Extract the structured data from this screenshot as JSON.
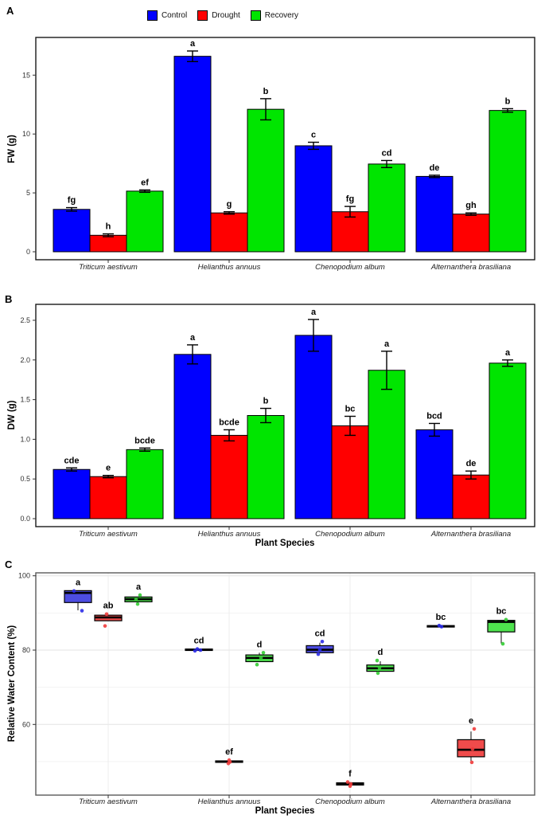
{
  "figure": {
    "panels": [
      {
        "label": "A"
      },
      {
        "label": "B"
      },
      {
        "label": "C"
      }
    ]
  },
  "legend": {
    "items": [
      {
        "label": "Control",
        "color": "#0000FF"
      },
      {
        "label": "Drought",
        "color": "#FF0000"
      },
      {
        "label": "Recovery",
        "color": "#00E500"
      }
    ]
  },
  "colors": {
    "bar_stroke": "#000000",
    "panel_border_ab": "#1a1a1a",
    "panel_border_c": "#5a5a5a",
    "grid_major": "#e3e3e3",
    "grid_minor": "#f0f0f0",
    "box_fill": {
      "Control": "#4D4DE1",
      "Drought": "#F04B4B",
      "Recovery": "#4EE24E"
    },
    "point_fill": {
      "Control": "#2B2BE8",
      "Drought": "#F03B3B",
      "Recovery": "#33CC33"
    }
  },
  "chart_data": [
    {
      "panel": "A",
      "type": "bar",
      "ylabel": "FW (g)",
      "xlabel": "",
      "yticks": [
        0,
        5,
        10,
        15
      ],
      "ytick_labels": [
        "0",
        "5",
        "10",
        "15"
      ],
      "ylim": [
        0,
        18.2
      ],
      "categories": [
        "Triticum aestivum",
        "Helianthus annuus",
        "Chenopodium album",
        "Alternanthera brasiliana"
      ],
      "series": [
        {
          "name": "Control",
          "color": "#0000FF",
          "values": [
            3.6,
            16.6,
            9.0,
            6.4
          ],
          "errors": [
            0.15,
            0.45,
            0.3,
            0.1
          ],
          "letters": [
            "fg",
            "a",
            "c",
            "de"
          ]
        },
        {
          "name": "Drought",
          "color": "#FF0000",
          "values": [
            1.4,
            3.3,
            3.4,
            3.2
          ],
          "errors": [
            0.12,
            0.1,
            0.45,
            0.1
          ],
          "letters": [
            "h",
            "g",
            "fg",
            "gh"
          ]
        },
        {
          "name": "Recovery",
          "color": "#00E500",
          "values": [
            5.15,
            12.1,
            7.45,
            12.0
          ],
          "errors": [
            0.1,
            0.9,
            0.3,
            0.15
          ],
          "letters": [
            "ef",
            "b",
            "cd",
            "b"
          ]
        }
      ]
    },
    {
      "panel": "B",
      "type": "bar",
      "ylabel": "DW (g)",
      "xlabel": "Plant Species",
      "yticks": [
        0,
        0.5,
        1.0,
        1.5,
        2.0,
        2.5
      ],
      "ytick_labels": [
        "0.0",
        "0.5",
        "1.0",
        "1.5",
        "2.0",
        "2.5"
      ],
      "ylim": [
        0,
        2.7
      ],
      "categories": [
        "Triticum aestivum",
        "Helianthus annuus",
        "Chenopodium album",
        "Alternanthera brasiliana"
      ],
      "series": [
        {
          "name": "Control",
          "color": "#0000FF",
          "values": [
            0.62,
            2.07,
            2.31,
            1.12
          ],
          "errors": [
            0.02,
            0.12,
            0.2,
            0.08
          ],
          "letters": [
            "cde",
            "a",
            "a",
            "bcd"
          ]
        },
        {
          "name": "Drought",
          "color": "#FF0000",
          "values": [
            0.53,
            1.05,
            1.17,
            0.55
          ],
          "errors": [
            0.015,
            0.07,
            0.12,
            0.05
          ],
          "letters": [
            "e",
            "bcde",
            "bc",
            "de"
          ]
        },
        {
          "name": "Recovery",
          "color": "#00E500",
          "values": [
            0.87,
            1.3,
            1.87,
            1.96
          ],
          "errors": [
            0.02,
            0.09,
            0.24,
            0.04
          ],
          "letters": [
            "bcde",
            "b",
            "a",
            "a"
          ]
        }
      ]
    },
    {
      "panel": "C",
      "type": "box",
      "ylabel": "Relative Water Content (%)",
      "xlabel": "Plant Species",
      "yticks": [
        60,
        80,
        100
      ],
      "ytick_labels": [
        "60",
        "80",
        "100"
      ],
      "minor_gridlines": [
        50,
        70,
        90
      ],
      "ylim": [
        41,
        100.8
      ],
      "categories": [
        "Triticum aestivum",
        "Helianthus annuus",
        "Chenopodium album",
        "Alternanthera brasiliana"
      ],
      "series": [
        {
          "name": "Control",
          "letters": [
            "a",
            "cd",
            "cd",
            "bc"
          ],
          "boxes": [
            {
              "q1": 92.8,
              "median": 95.4,
              "q3": 96.0,
              "lo": 90.7,
              "hi": 96.0,
              "points": [
                {
                  "v": 95.9,
                  "dx": -5
                },
                {
                  "v": 90.6,
                  "dx": 5
                }
              ]
            },
            {
              "q1": 79.9,
              "median": 80.1,
              "q3": 80.3,
              "lo": 79.9,
              "hi": 80.3,
              "points": [
                {
                  "v": 80.3,
                  "dx": -2
                },
                {
                  "v": 80.0,
                  "dx": 2
                },
                {
                  "v": 79.8,
                  "dx": -5
                }
              ]
            },
            {
              "q1": 79.3,
              "median": 80.1,
              "q3": 81.2,
              "lo": 79.3,
              "hi": 82.0,
              "points": [
                {
                  "v": 82.3,
                  "dx": 3
                },
                {
                  "v": 80.1,
                  "dx": 0
                },
                {
                  "v": 78.9,
                  "dx": -2
                }
              ]
            },
            {
              "q1": 86.2,
              "median": 86.4,
              "q3": 86.6,
              "lo": 86.2,
              "hi": 86.6,
              "points": [
                {
                  "v": 86.6,
                  "dx": -2
                },
                {
                  "v": 86.3,
                  "dx": 1
                }
              ]
            }
          ]
        },
        {
          "name": "Drought",
          "letters": [
            "ab",
            "ef",
            "f",
            "e"
          ],
          "boxes": [
            {
              "q1": 87.9,
              "median": 88.8,
              "q3": 89.4,
              "lo": 87.9,
              "hi": 89.4,
              "points": [
                {
                  "v": 89.7,
                  "dx": -2
                },
                {
                  "v": 86.5,
                  "dx": -4
                }
              ]
            },
            {
              "q1": 49.8,
              "median": 50.0,
              "q3": 50.2,
              "lo": 49.8,
              "hi": 50.2,
              "points": [
                {
                  "v": 50.4,
                  "dx": 0
                },
                {
                  "v": 49.9,
                  "dx": 1
                },
                {
                  "v": 49.5,
                  "dx": -1
                }
              ]
            },
            {
              "q1": 43.7,
              "median": 44.0,
              "q3": 44.3,
              "lo": 43.7,
              "hi": 44.3,
              "points": [
                {
                  "v": 44.5,
                  "dx": -3
                },
                {
                  "v": 44.0,
                  "dx": 1
                },
                {
                  "v": 43.4,
                  "dx": 0
                }
              ]
            },
            {
              "q1": 51.3,
              "median": 53.2,
              "q3": 55.9,
              "lo": 50.2,
              "hi": 58.1,
              "points": [
                {
                  "v": 58.8,
                  "dx": 4
                },
                {
                  "v": 53.4,
                  "dx": 2
                },
                {
                  "v": 49.8,
                  "dx": 1
                }
              ]
            }
          ]
        },
        {
          "name": "Recovery",
          "letters": [
            "a",
            "d",
            "d",
            "bc"
          ],
          "boxes": [
            {
              "q1": 93.0,
              "median": 93.7,
              "q3": 94.3,
              "lo": 93.0,
              "hi": 94.3,
              "points": [
                {
                  "v": 94.8,
                  "dx": 2
                },
                {
                  "v": 93.6,
                  "dx": -3
                },
                {
                  "v": 92.4,
                  "dx": -1
                }
              ]
            },
            {
              "q1": 76.9,
              "median": 77.9,
              "q3": 78.7,
              "lo": 76.9,
              "hi": 79.3,
              "points": [
                {
                  "v": 79.3,
                  "dx": 5
                },
                {
                  "v": 77.9,
                  "dx": 2
                },
                {
                  "v": 76.1,
                  "dx": -3
                }
              ]
            },
            {
              "q1": 74.3,
              "median": 75.1,
              "q3": 76.0,
              "lo": 74.3,
              "hi": 77.0,
              "points": [
                {
                  "v": 77.2,
                  "dx": -4
                },
                {
                  "v": 75.2,
                  "dx": -1
                },
                {
                  "v": 73.8,
                  "dx": -3
                }
              ]
            },
            {
              "q1": 84.9,
              "median": 87.6,
              "q3": 88.0,
              "lo": 81.8,
              "hi": 88.0,
              "points": [
                {
                  "v": 88.2,
                  "dx": 6
                },
                {
                  "v": 81.7,
                  "dx": 2
                }
              ]
            }
          ]
        }
      ]
    }
  ]
}
